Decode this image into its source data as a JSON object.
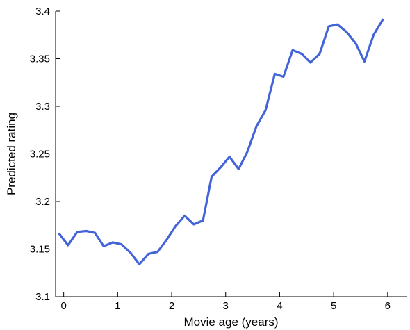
{
  "chart_data": {
    "type": "line",
    "xlabel": "Movie age (years)",
    "ylabel": "Predicted rating",
    "xlim": [
      -0.15,
      6.35
    ],
    "ylim": [
      3.1,
      3.4
    ],
    "x_ticks": [
      0,
      1,
      2,
      3,
      4,
      5,
      6
    ],
    "x_tick_labels": [
      "0",
      "1",
      "2",
      "3",
      "4",
      "5",
      "6"
    ],
    "y_ticks": [
      3.1,
      3.15,
      3.2,
      3.25,
      3.3,
      3.35,
      3.4
    ],
    "y_tick_labels": [
      "3.1",
      "3.15",
      "3.2",
      "3.25",
      "3.3",
      "3.35",
      "3.4"
    ],
    "grid": false,
    "series": [
      {
        "color": "#4363d8",
        "x": [
          -0.08,
          0.08,
          0.25,
          0.42,
          0.58,
          0.74,
          0.91,
          1.07,
          1.24,
          1.4,
          1.57,
          1.74,
          1.91,
          2.07,
          2.24,
          2.41,
          2.58,
          2.74,
          2.91,
          3.07,
          3.24,
          3.4,
          3.57,
          3.74,
          3.91,
          4.07,
          4.24,
          4.41,
          4.57,
          4.74,
          4.91,
          5.07,
          5.24,
          5.41,
          5.57,
          5.74,
          5.91
        ],
        "y": [
          3.166,
          3.154,
          3.168,
          3.169,
          3.167,
          3.153,
          3.157,
          3.155,
          3.146,
          3.134,
          3.145,
          3.147,
          3.16,
          3.174,
          3.185,
          3.176,
          3.18,
          3.226,
          3.236,
          3.247,
          3.234,
          3.252,
          3.279,
          3.296,
          3.334,
          3.331,
          3.359,
          3.355,
          3.346,
          3.355,
          3.384,
          3.386,
          3.378,
          3.366,
          3.347,
          3.375,
          3.391
        ]
      }
    ]
  }
}
